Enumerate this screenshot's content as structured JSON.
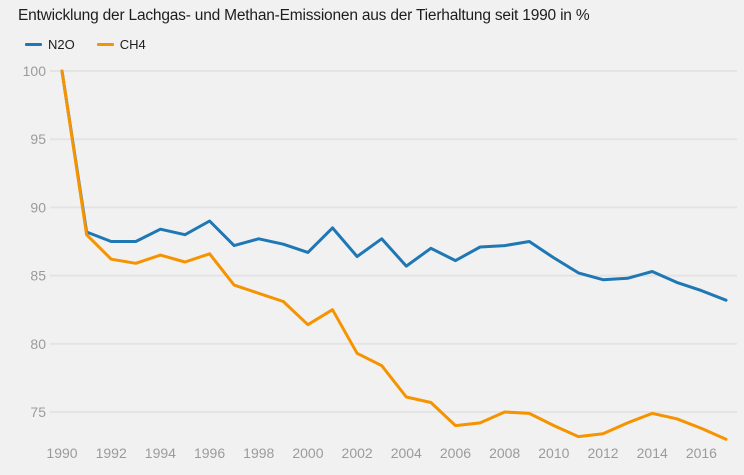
{
  "title": "Entwicklung der Lachgas- und Methan-Emissionen aus der Tierhaltung seit 1990 in %",
  "legend": [
    {
      "label": "N2O",
      "color": "#1f77b4"
    },
    {
      "label": "CH4",
      "color": "#f59300"
    }
  ],
  "colors": {
    "background": "#f1f1f1",
    "gridline": "#e4e4e4",
    "axis_text": "#9b9b9b",
    "title_text": "#1d1d1d",
    "n2o": "#1f77b4",
    "ch4": "#f59300"
  },
  "chart_data": {
    "type": "line",
    "title": "Entwicklung der Lachgas- und Methan-Emissionen aus der Tierhaltung seit 1990 in %",
    "xlabel": "",
    "ylabel": "",
    "x": [
      1990,
      1991,
      1992,
      1993,
      1994,
      1995,
      1996,
      1997,
      1998,
      1999,
      2000,
      2001,
      2002,
      2003,
      2004,
      2005,
      2006,
      2007,
      2008,
      2009,
      2010,
      2011,
      2012,
      2013,
      2014,
      2015,
      2016,
      2017
    ],
    "series": [
      {
        "name": "N2O",
        "color": "#1f77b4",
        "values": [
          100,
          88.2,
          87.5,
          87.5,
          88.4,
          88.0,
          89.0,
          87.2,
          87.7,
          87.3,
          86.7,
          88.5,
          86.4,
          87.7,
          85.7,
          87.0,
          86.1,
          87.1,
          87.2,
          87.5,
          86.3,
          85.2,
          84.7,
          84.8,
          85.3,
          84.5,
          83.9,
          83.2
        ]
      },
      {
        "name": "CH4",
        "color": "#f59300",
        "values": [
          100,
          88.0,
          86.2,
          85.9,
          86.5,
          86.0,
          86.6,
          84.3,
          83.7,
          83.1,
          81.4,
          82.5,
          79.3,
          78.4,
          76.1,
          75.7,
          74.0,
          74.2,
          75.0,
          74.9,
          74.0,
          73.2,
          73.4,
          74.2,
          74.9,
          74.5,
          73.8,
          73.0
        ]
      }
    ],
    "y_ticks": [
      100,
      95,
      90,
      85,
      80,
      75
    ],
    "x_tick_labels": [
      "1990",
      "1992",
      "1994",
      "1996",
      "1998",
      "2000",
      "2002",
      "2004",
      "2006",
      "2008",
      "2010",
      "2012",
      "2014",
      "2016"
    ],
    "ylim": [
      72.9,
      100
    ],
    "xlim": [
      1990,
      2017
    ],
    "grid": "horizontal",
    "legend_position": "top-left"
  }
}
